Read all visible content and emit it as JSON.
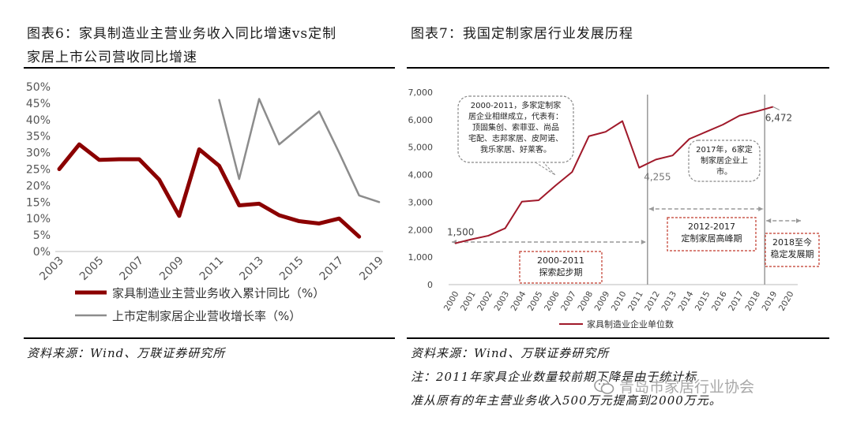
{
  "left": {
    "title_line1": "图表6：家具制造业主营业务收入同比增速vs定制",
    "title_line2": "家居上市公司营收同比增速",
    "source": "资料来源：Wind、万联证券研究所"
  },
  "right": {
    "title": "图表7：我国定制家居行业发展历程",
    "source": "资料来源：Wind、万联证券研究所",
    "note_line1": "注：2011年家具企业数量较前期下降是由于统计标",
    "note_line2": "准从原有的年主营业务收入500万元提高到2000万元。"
  },
  "watermark": "青岛市家居行业协会",
  "chart_data": [
    {
      "type": "line",
      "x": [
        2003,
        2004,
        2005,
        2006,
        2007,
        2008,
        2009,
        2010,
        2011,
        2012,
        2013,
        2014,
        2015,
        2016,
        2017,
        2018,
        2019
      ],
      "x_tick_labels": [
        "2003",
        "2005",
        "2007",
        "2009",
        "2011",
        "2013",
        "2015",
        "2017",
        "2019"
      ],
      "y_tick_labels": [
        "0%",
        "5%",
        "10%",
        "15%",
        "20%",
        "25%",
        "30%",
        "35%",
        "40%",
        "45%",
        "50%"
      ],
      "ylim": [
        0,
        50
      ],
      "series": [
        {
          "name": "家具制造业主营业务收入累计同比（%）",
          "color": "#8b0000",
          "values": [
            25,
            32.5,
            27.8,
            28,
            28,
            21.8,
            10.8,
            31,
            26,
            14,
            14.5,
            11,
            9.2,
            8.5,
            10,
            4.5,
            null
          ]
        },
        {
          "name": "上市定制家居企业营收增长率（%）",
          "color": "#8c8c8c",
          "values": [
            null,
            null,
            null,
            null,
            null,
            null,
            null,
            null,
            46,
            22,
            46.3,
            32.5,
            37.5,
            42.5,
            30,
            17,
            15
          ]
        }
      ],
      "grid": false,
      "legend": "bottom"
    },
    {
      "type": "line",
      "x": [
        2000,
        2001,
        2002,
        2003,
        2004,
        2005,
        2006,
        2007,
        2008,
        2009,
        2010,
        2011,
        2012,
        2013,
        2014,
        2015,
        2016,
        2017,
        2018,
        2019,
        2020
      ],
      "x_tick_labels": [
        "2000",
        "2001",
        "2002",
        "2003",
        "2004",
        "2005",
        "2006",
        "2007",
        "2008",
        "2009",
        "2010",
        "2011",
        "2012",
        "2013",
        "2014",
        "2015",
        "2016",
        "2017",
        "2018",
        "2019",
        "2020"
      ],
      "y_tick_labels": [
        "0",
        "1,000",
        "2,000",
        "3,000",
        "4,000",
        "5,000",
        "6,000",
        "7,000"
      ],
      "ylim": [
        0,
        7000
      ],
      "series": [
        {
          "name": "家具制造业企业单位数",
          "color": "#a0192a",
          "values": [
            1500,
            1650,
            1780,
            2050,
            3020,
            3070,
            3600,
            4100,
            5400,
            5560,
            5950,
            4255,
            4550,
            4700,
            5300,
            5560,
            5820,
            6150,
            6300,
            6472,
            null
          ]
        }
      ],
      "point_labels": [
        {
          "text": "1,500"
        },
        {
          "text": "4,255"
        },
        {
          "text": "6,472"
        }
      ],
      "annotations": [
        {
          "lines": [
            "2000-2011，多家定制家",
            "居企业相继成立，代表有：",
            "顶固集创、索菲亚、尚品",
            "宅配、志邦家居、皮阿诺、",
            "我乐家居、好莱客。"
          ]
        },
        {
          "lines": [
            "2017年，6家定",
            "制家居企业上",
            "市。"
          ]
        },
        {
          "lines": [
            "2000-2011",
            "探索起步期"
          ]
        },
        {
          "lines": [
            "2012-2017",
            "定制家居高峰期"
          ]
        },
        {
          "lines": [
            "2018至今",
            "稳定发展期"
          ]
        }
      ],
      "grid": false,
      "legend": "bottom"
    }
  ]
}
